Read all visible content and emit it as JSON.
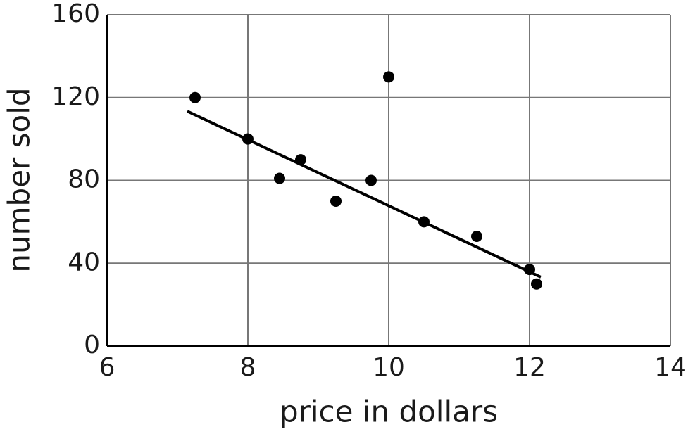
{
  "chart_data": {
    "type": "scatter",
    "x_label": "price in dollars",
    "y_label": "number sold",
    "x": [
      7.25,
      8,
      8.45,
      8.75,
      9.25,
      9.75,
      10,
      10.5,
      11.25,
      12,
      12.1
    ],
    "values": [
      120,
      100,
      81,
      90,
      70,
      80,
      130,
      60,
      53,
      37,
      30
    ],
    "color": "#000000",
    "trend_line": {
      "x": [
        7.14,
        12.16
      ],
      "y": [
        113.4,
        33.3
      ],
      "color": "#000000"
    },
    "xlim": [
      6,
      14
    ],
    "xticks": [
      6,
      8,
      10,
      12,
      14
    ],
    "ylim": [
      0,
      160
    ],
    "yticks": [
      0,
      40,
      80,
      120,
      160
    ],
    "grid": true
  }
}
